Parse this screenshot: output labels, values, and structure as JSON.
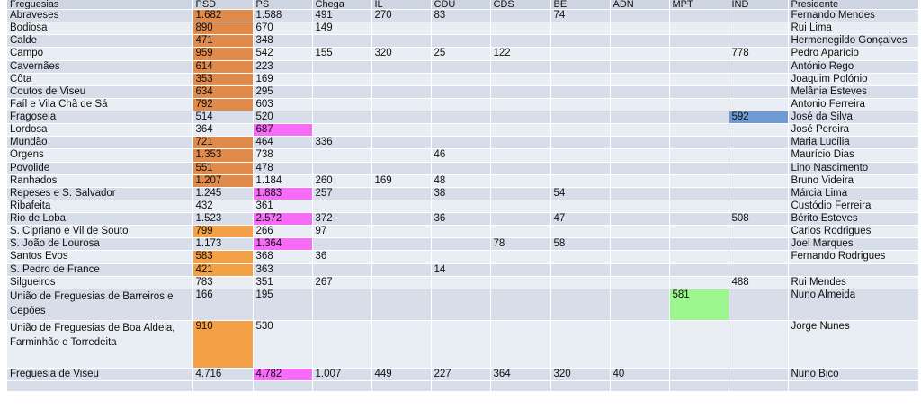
{
  "columns": [
    "Freguesias",
    "PSD",
    "PS",
    "Chega",
    "IL",
    "CDU",
    "CDS",
    "BE",
    "ADN",
    "MPT",
    "IND",
    "Presidente"
  ],
  "colors": {
    "orange_dark": "#e08a4c",
    "orange_light": "#f4a046",
    "magenta": "#f76cf7",
    "blue": "#6d9ad3",
    "green": "#9cf58e"
  },
  "rows": [
    {
      "cells": [
        "Abraveses",
        "1.682",
        "1.588",
        "491",
        "270",
        "83",
        "",
        "74",
        "",
        "",
        "",
        "Fernando Mendes"
      ],
      "highlight": {
        "col": 1,
        "color": "orange_dark"
      }
    },
    {
      "cells": [
        "Bodiosa",
        "890",
        "670",
        "149",
        "",
        "",
        "",
        "",
        "",
        "",
        "",
        "Rui Lima"
      ],
      "highlight": {
        "col": 1,
        "color": "orange_dark"
      }
    },
    {
      "cells": [
        "Calde",
        "471",
        "348",
        "",
        "",
        "",
        "",
        "",
        "",
        "",
        "",
        "Hermenegildo Gonçalves"
      ],
      "highlight": {
        "col": 1,
        "color": "orange_dark"
      }
    },
    {
      "cells": [
        "Campo",
        "959",
        "542",
        "155",
        "320",
        "25",
        "122",
        "",
        "",
        "",
        "778",
        "Pedro Aparício"
      ],
      "highlight": {
        "col": 1,
        "color": "orange_dark"
      }
    },
    {
      "cells": [
        "Cavernães",
        "614",
        "223",
        "",
        "",
        "",
        "",
        "",
        "",
        "",
        "",
        "António Rego"
      ],
      "highlight": {
        "col": 1,
        "color": "orange_dark"
      }
    },
    {
      "cells": [
        "Côta",
        "353",
        "169",
        "",
        "",
        "",
        "",
        "",
        "",
        "",
        "",
        "Joaquim Polónio"
      ],
      "highlight": {
        "col": 1,
        "color": "orange_dark"
      }
    },
    {
      "cells": [
        "Coutos de Viseu",
        "634",
        "295",
        "",
        "",
        "",
        "",
        "",
        "",
        "",
        "",
        "Melânia Esteves"
      ],
      "highlight": {
        "col": 1,
        "color": "orange_dark"
      }
    },
    {
      "cells": [
        "Faíl e Vila Chã de Sá",
        "792",
        "603",
        "",
        "",
        "",
        "",
        "",
        "",
        "",
        "",
        "Antonio Ferreira"
      ],
      "highlight": {
        "col": 1,
        "color": "orange_dark"
      }
    },
    {
      "cells": [
        "Fragosela",
        "514",
        "520",
        "",
        "",
        "",
        "",
        "",
        "",
        "",
        "592",
        "José da Silva"
      ],
      "highlight": {
        "col": 10,
        "color": "blue"
      }
    },
    {
      "cells": [
        "Lordosa",
        "364",
        "687",
        "",
        "",
        "",
        "",
        "",
        "",
        "",
        "",
        "José Pereira"
      ],
      "highlight": {
        "col": 2,
        "color": "magenta"
      }
    },
    {
      "cells": [
        "Mundão",
        "721",
        "464",
        "336",
        "",
        "",
        "",
        "",
        "",
        "",
        "",
        "Maria Lucília"
      ],
      "highlight": {
        "col": 1,
        "color": "orange_dark"
      }
    },
    {
      "cells": [
        "Orgens",
        "1.353",
        "738",
        "",
        "",
        "46",
        "",
        "",
        "",
        "",
        "",
        "Maurício Dias"
      ],
      "highlight": {
        "col": 1,
        "color": "orange_dark"
      }
    },
    {
      "cells": [
        "Povolide",
        "551",
        "478",
        "",
        "",
        "",
        "",
        "",
        "",
        "",
        "",
        "Lino Nascimento"
      ],
      "highlight": {
        "col": 1,
        "color": "orange_dark"
      }
    },
    {
      "cells": [
        "Ranhados",
        "1.207",
        "1.184",
        "260",
        "169",
        "48",
        "",
        "",
        "",
        "",
        "",
        "Bruno Videira"
      ],
      "highlight": {
        "col": 1,
        "color": "orange_dark"
      }
    },
    {
      "cells": [
        "Repeses e S. Salvador",
        "1.245",
        "1.883",
        "257",
        "",
        "38",
        "",
        "54",
        "",
        "",
        "",
        "Márcia Lima"
      ],
      "highlight": {
        "col": 2,
        "color": "magenta"
      }
    },
    {
      "cells": [
        "Ribafeita",
        "432",
        "361",
        "",
        "",
        "",
        "",
        "",
        "",
        "",
        "",
        "Custódio Ferreira"
      ],
      "highlight": null
    },
    {
      "cells": [
        "Rio de Loba",
        "1.523",
        "2.572",
        "372",
        "",
        "36",
        "",
        "47",
        "",
        "",
        "508",
        "Bérito Esteves"
      ],
      "highlight": {
        "col": 2,
        "color": "magenta"
      }
    },
    {
      "cells": [
        "S. Cipriano e Vil de Souto",
        "799",
        "266",
        "97",
        "",
        "",
        "",
        "",
        "",
        "",
        "",
        "Carlos Rodrigues"
      ],
      "highlight": {
        "col": 1,
        "color": "orange_light"
      }
    },
    {
      "cells": [
        "S. João de Lourosa",
        "1.173",
        "1.364",
        "",
        "",
        "",
        "78",
        "58",
        "",
        "",
        "",
        "Joel Marques"
      ],
      "highlight": {
        "col": 2,
        "color": "magenta"
      }
    },
    {
      "cells": [
        "Santos Evos",
        "583",
        "368",
        "36",
        "",
        "",
        "",
        "",
        "",
        "",
        "",
        "Fernando Rodrigues"
      ],
      "highlight": {
        "col": 1,
        "color": "orange_light"
      }
    },
    {
      "cells": [
        "S. Pedro de France",
        "421",
        "363",
        "",
        "",
        "14",
        "",
        "",
        "",
        "",
        "",
        ""
      ],
      "highlight": {
        "col": 1,
        "color": "orange_light"
      }
    },
    {
      "cells": [
        "Silgueiros",
        "783",
        "351",
        "267",
        "",
        "",
        "",
        "",
        "",
        "",
        "488",
        "Rui Mendes"
      ],
      "highlight": null
    },
    {
      "cells": [
        "União de Freguesias de Barreiros e Cepões",
        "166",
        "195",
        "",
        "",
        "",
        "",
        "",
        "",
        "581",
        "",
        "Nuno Almeida"
      ],
      "highlight": {
        "col": 9,
        "color": "green"
      },
      "tall": 1
    },
    {
      "cells": [
        "União de Freguesias de Boa Aldeia, Farminhão e Torredeita",
        "910",
        "530",
        "",
        "",
        "",
        "",
        "",
        "",
        "",
        "",
        "Jorge Nunes"
      ],
      "highlight": {
        "col": 1,
        "color": "orange_light"
      },
      "tall": 2
    },
    {
      "cells": [
        "Freguesia de Viseu",
        "4.716",
        "4.782",
        "1.007",
        "449",
        "227",
        "364",
        "320",
        "40",
        "",
        "",
        "Nuno Bico"
      ],
      "highlight": {
        "col": 2,
        "color": "magenta"
      }
    }
  ]
}
